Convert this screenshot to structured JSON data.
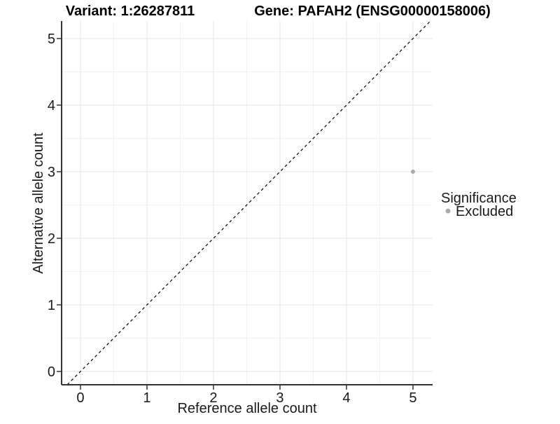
{
  "chart_data": {
    "type": "scatter",
    "titles": {
      "left": "Variant: 1:26287811",
      "right": "Gene: PAFAH2 (ENSG00000158006)"
    },
    "xlabel": "Reference allele count",
    "ylabel": "Alternative allele count",
    "xlim": [
      -0.284,
      5.295
    ],
    "ylim": [
      -0.2,
      5.263
    ],
    "x_ticks": [
      0,
      1,
      2,
      3,
      4,
      5
    ],
    "y_ticks": [
      0,
      1,
      2,
      3,
      4,
      5
    ],
    "grid": {
      "major": true,
      "minor": true
    },
    "reference_line": {
      "style": "dashed",
      "slope": 1,
      "intercept": 0,
      "color": "#000000"
    },
    "points": [
      {
        "x": 5,
        "y": 3,
        "significance": "Excluded",
        "color": "#ABABAB",
        "radius": 3
      }
    ],
    "legend": {
      "title": "Significance",
      "position": "right",
      "entries": [
        {
          "label": "Excluded",
          "color": "#ABABAB"
        }
      ]
    },
    "colors": {
      "background": "#FFFFFF",
      "grid_major": "#E6E6E6",
      "grid_minor": "#F2F2F2",
      "axis": "#333333",
      "tick_text": "#1A1A1A",
      "title_text": "#000000"
    }
  }
}
